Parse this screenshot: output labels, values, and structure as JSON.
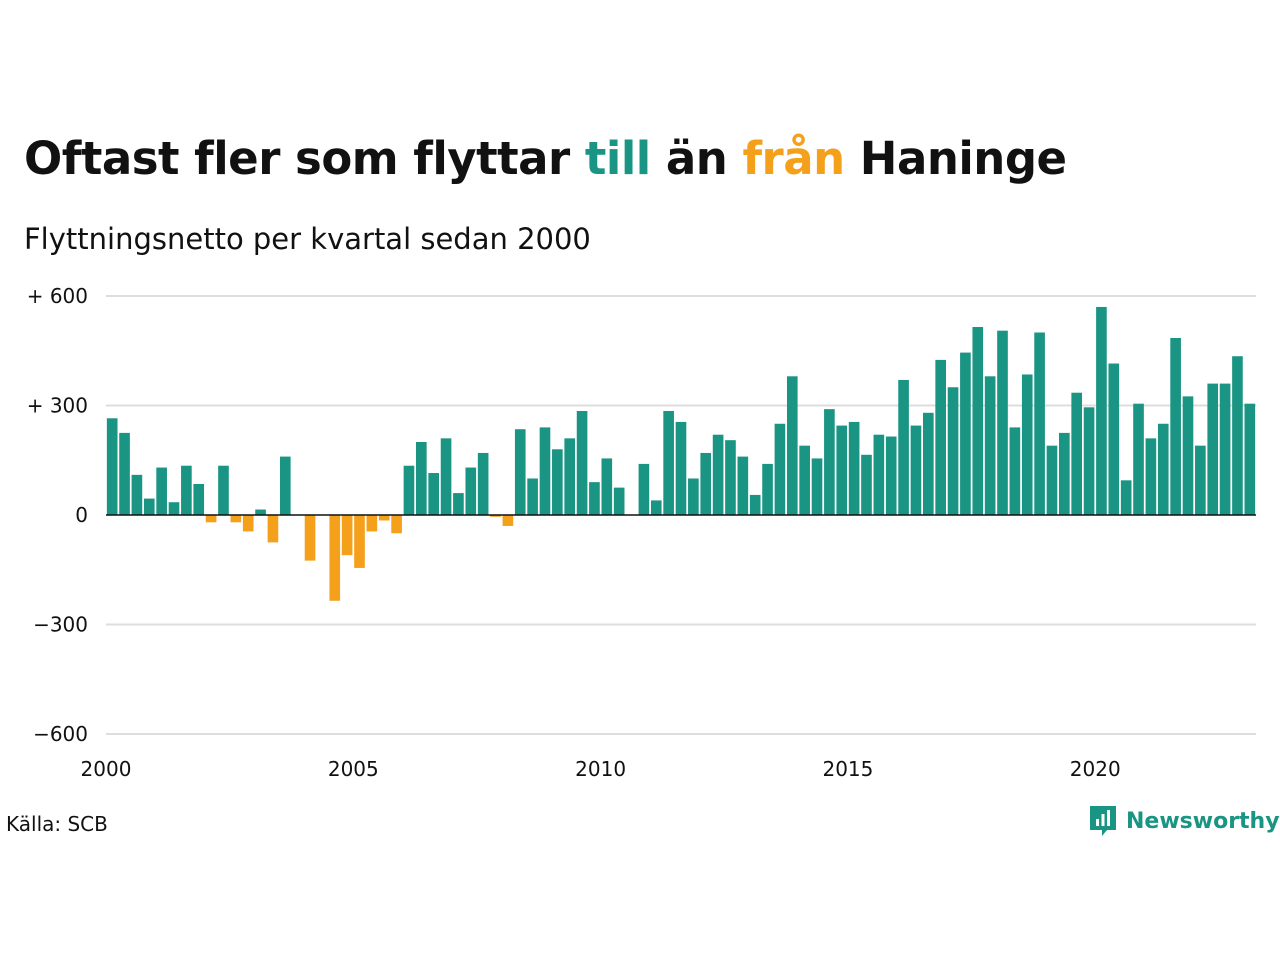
{
  "title": {
    "part1": "Oftast fler som flyttar ",
    "word_in": "till",
    "part2": " än ",
    "word_out": "från",
    "part3": " Haninge"
  },
  "subtitle": "Flyttningsnetto per kvartal sedan 2000",
  "source": "Källa: SCB",
  "brand": {
    "name": "Newsworthy",
    "icon": "newsworthy-logo-icon"
  },
  "colors": {
    "positive": "#1a9483",
    "negative": "#f4a01b",
    "grid": "#dddddd",
    "zero_line": "#111111",
    "text": "#111111"
  },
  "chart_data": {
    "type": "bar",
    "title": "Oftast fler som flyttar till än från Haninge",
    "subtitle": "Flyttningsnetto per kvartal sedan 2000",
    "xlabel": "",
    "ylabel": "",
    "ylim": [
      -600,
      600
    ],
    "xlim": [
      2000,
      2023.25
    ],
    "y_ticks": [
      {
        "value": 600,
        "label": "+ 600"
      },
      {
        "value": 300,
        "label": "+ 300"
      },
      {
        "value": 0,
        "label": "0"
      },
      {
        "value": -300,
        "label": "−300"
      },
      {
        "value": -600,
        "label": "−600"
      }
    ],
    "x_ticks": [
      {
        "value": 2000,
        "label": "2000"
      },
      {
        "value": 2005,
        "label": "2005"
      },
      {
        "value": 2010,
        "label": "2010"
      },
      {
        "value": 2015,
        "label": "2015"
      },
      {
        "value": 2020,
        "label": "2020"
      }
    ],
    "grid": true,
    "legend": "none",
    "start_year": 2000,
    "series": [
      {
        "values": [
          265,
          225,
          110,
          45,
          130,
          35,
          135,
          85,
          -20,
          135,
          -20,
          -45,
          15,
          -75,
          160,
          0,
          -125,
          0,
          -235,
          -110,
          -145,
          -45,
          -15,
          -50,
          135,
          200,
          115,
          210,
          60,
          130,
          170,
          -5,
          -30,
          235,
          100,
          240,
          180,
          210,
          285,
          90,
          155,
          75,
          0,
          140,
          40,
          285,
          255,
          100,
          170,
          220,
          205,
          160,
          55,
          140,
          250,
          380,
          190,
          155,
          290,
          245,
          255,
          165,
          220,
          215,
          370,
          245,
          280,
          425,
          350,
          445,
          515,
          380,
          505,
          240,
          385,
          500,
          190,
          225,
          335,
          295,
          570,
          415,
          95,
          305,
          210,
          250,
          485,
          325,
          190,
          360,
          360,
          435,
          305
        ]
      }
    ]
  }
}
